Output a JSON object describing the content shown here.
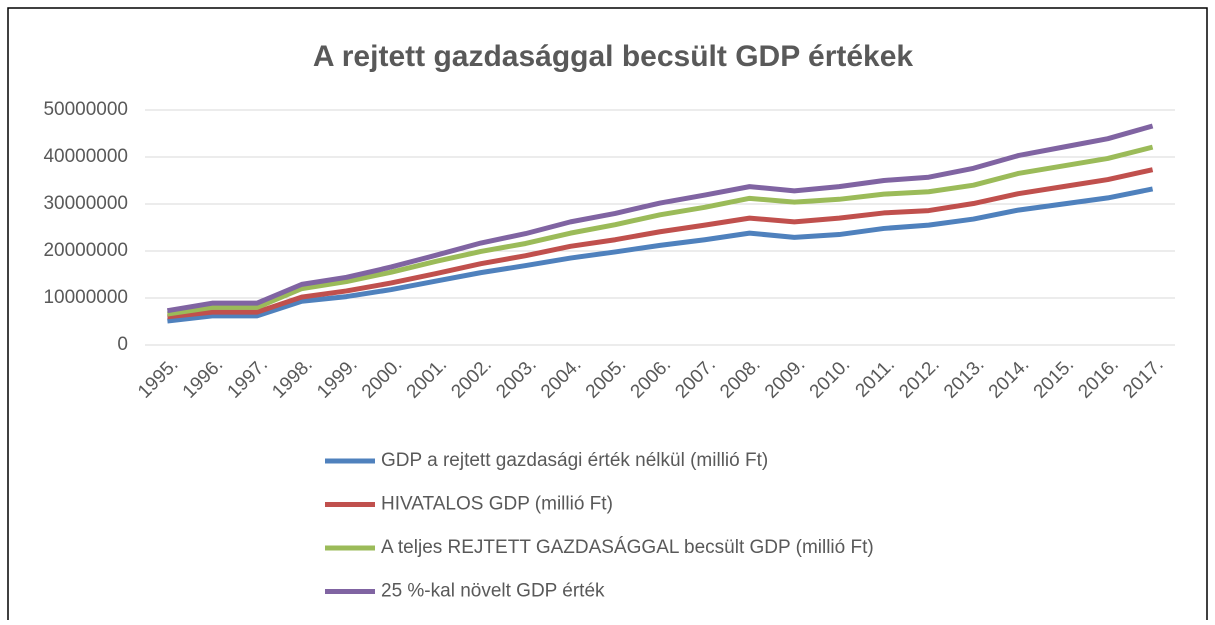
{
  "chart_data": {
    "type": "line",
    "title": "A rejtett gazdasággal becsült GDP értékek",
    "categories": [
      "1995.",
      "1996.",
      "1997.",
      "1998.",
      "1999.",
      "2000.",
      "2001.",
      "2002.",
      "2003.",
      "2004.",
      "2005.",
      "2006.",
      "2007.",
      "2008.",
      "2009.",
      "2010.",
      "2011.",
      "2012.",
      "2013.",
      "2014.",
      "2015.",
      "2016.",
      "2017."
    ],
    "series": [
      {
        "name": "GDP a rejtett gazdasági érték nélkül (millió Ft)",
        "color": "#4f81bd",
        "values": [
          5100000,
          6200000,
          6200000,
          9300000,
          10300000,
          11800000,
          13600000,
          15400000,
          16900000,
          18500000,
          19800000,
          21200000,
          22400000,
          23800000,
          22900000,
          23500000,
          24800000,
          25500000,
          26800000,
          28700000,
          30000000,
          31300000,
          33200000
        ]
      },
      {
        "name": "HIVATALOS GDP (millió Ft)",
        "color": "#c0504d",
        "values": [
          6000000,
          7000000,
          7000000,
          10200000,
          11500000,
          13200000,
          15200000,
          17300000,
          19000000,
          21000000,
          22400000,
          24100000,
          25500000,
          27000000,
          26200000,
          27000000,
          28100000,
          28600000,
          30100000,
          32200000,
          33700000,
          35200000,
          37300000
        ]
      },
      {
        "name": "A teljes REJTETT GAZDASÁGGAL becsült GDP (millió Ft)",
        "color": "#9bbb59",
        "values": [
          6600000,
          8000000,
          8000000,
          12000000,
          13500000,
          15500000,
          17800000,
          19900000,
          21600000,
          23800000,
          25600000,
          27700000,
          29300000,
          31200000,
          30400000,
          31000000,
          32100000,
          32600000,
          34000000,
          36500000,
          38100000,
          39700000,
          42100000
        ]
      },
      {
        "name": "25 %-kal növelt GDP érték",
        "color": "#8064a2",
        "values": [
          7300000,
          8900000,
          8900000,
          12900000,
          14400000,
          16600000,
          19100000,
          21700000,
          23700000,
          26200000,
          28000000,
          30200000,
          31900000,
          33700000,
          32800000,
          33700000,
          35000000,
          35700000,
          37600000,
          40300000,
          42100000,
          43900000,
          46600000
        ]
      }
    ],
    "ylim": [
      0,
      50000000
    ],
    "yticks": [
      0,
      10000000,
      20000000,
      30000000,
      40000000,
      50000000
    ],
    "grid": true,
    "legend": "bottom"
  }
}
